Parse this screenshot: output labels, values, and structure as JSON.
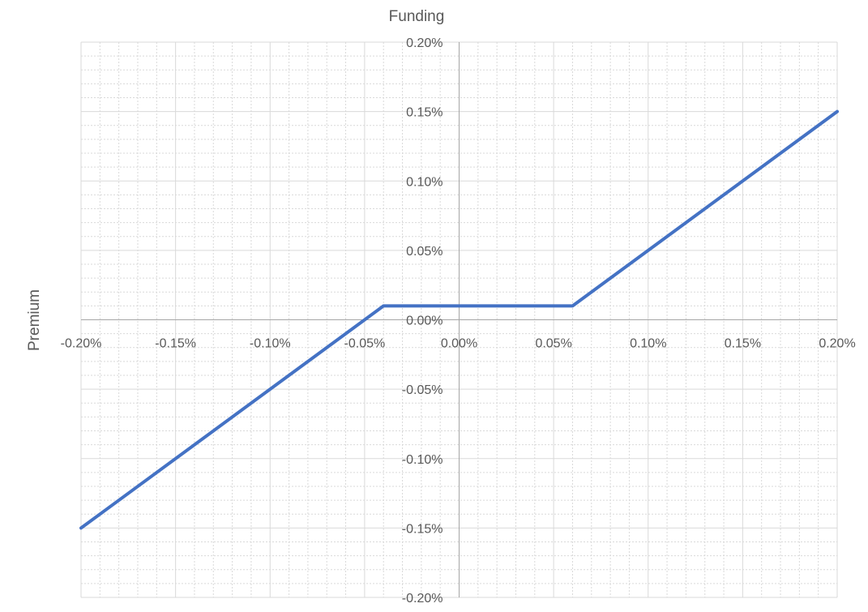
{
  "chart_data": {
    "type": "line",
    "xlabel": "Premium",
    "ylabel": "Funding",
    "xlim": [
      -0.2,
      0.2
    ],
    "ylim": [
      -0.2,
      0.2
    ],
    "x_ticks": [
      {
        "value": -0.2,
        "label": "-0.20%"
      },
      {
        "value": -0.15,
        "label": "-0.15%"
      },
      {
        "value": -0.1,
        "label": "-0.10%"
      },
      {
        "value": -0.05,
        "label": "-0.05%"
      },
      {
        "value": 0.0,
        "label": "0.00%"
      },
      {
        "value": 0.05,
        "label": "0.05%"
      },
      {
        "value": 0.1,
        "label": "0.10%"
      },
      {
        "value": 0.15,
        "label": "0.15%"
      },
      {
        "value": 0.2,
        "label": "0.20%"
      }
    ],
    "y_ticks": [
      {
        "value": 0.2,
        "label": "0.20%"
      },
      {
        "value": 0.15,
        "label": "0.15%"
      },
      {
        "value": 0.1,
        "label": "0.10%"
      },
      {
        "value": 0.05,
        "label": "0.05%"
      },
      {
        "value": 0.0,
        "label": "0.00%"
      },
      {
        "value": -0.05,
        "label": "-0.05%"
      },
      {
        "value": -0.1,
        "label": "-0.10%"
      },
      {
        "value": -0.15,
        "label": "-0.15%"
      },
      {
        "value": -0.2,
        "label": "-0.20%"
      }
    ],
    "grid": true,
    "minor_grid": true,
    "legend": "none",
    "series": [
      {
        "color": "#4472C4",
        "x": [
          -0.2,
          -0.04,
          0.06,
          0.2
        ],
        "y": [
          -0.15,
          0.01,
          0.01,
          0.15
        ]
      }
    ]
  }
}
